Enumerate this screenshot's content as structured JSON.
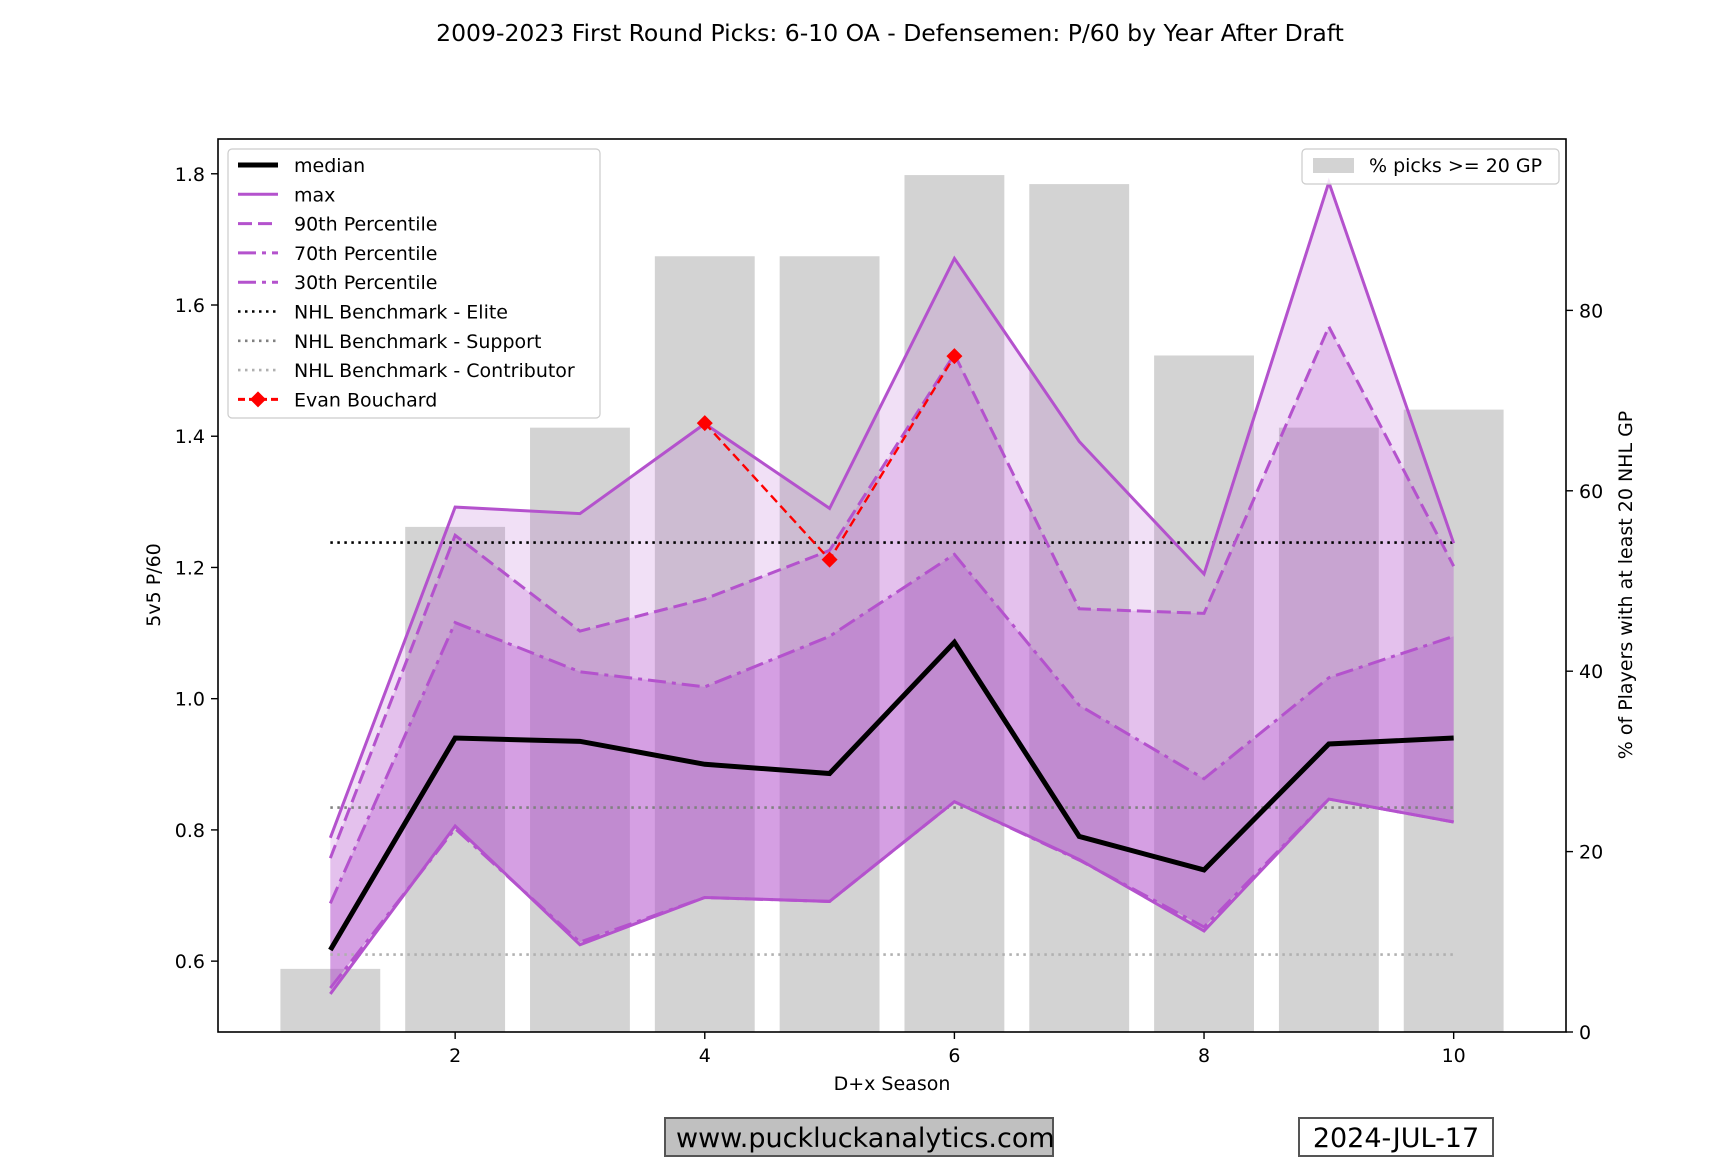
{
  "chart_data": {
    "type": "line",
    "title": "2009-2023 First Round Picks: 6-10 OA - Defensemen: P/60 by Year After Draft",
    "xlabel": "D+x Season",
    "ylabel": "5v5 P/60",
    "ylabel_right": "% of Players with at least 20 NHL GP",
    "x": [
      1,
      2,
      3,
      4,
      5,
      6,
      7,
      8,
      9,
      10
    ],
    "xlim": [
      0.1,
      10.9
    ],
    "ylim": [
      0.492,
      1.853
    ],
    "ylim_right": [
      0,
      99
    ],
    "x_ticks": [
      "2",
      "4",
      "6",
      "8",
      "10"
    ],
    "y_ticks": [
      "0.6",
      "0.8",
      "1.0",
      "1.2",
      "1.4",
      "1.6",
      "1.8"
    ],
    "y_right_ticks": [
      "0",
      "20",
      "40",
      "60",
      "80"
    ],
    "bars": {
      "name": "% picks >= 20 GP",
      "values": [
        7,
        56,
        67,
        86,
        86,
        95,
        94,
        75,
        67,
        69
      ],
      "color": "#d3d3d3"
    },
    "series": [
      {
        "name": "median",
        "style": "solid-thick",
        "color": "#000000",
        "values": [
          0.617,
          0.94,
          0.935,
          0.9,
          0.886,
          1.086,
          0.79,
          0.739,
          0.931,
          0.94
        ]
      },
      {
        "name": "max",
        "style": "solid",
        "color": "#b452cd",
        "values": [
          0.788,
          1.292,
          1.282,
          1.419,
          1.29,
          1.671,
          1.392,
          1.19,
          1.787,
          1.237
        ]
      },
      {
        "name": "90th Percentile",
        "style": "dashed",
        "color": "#b452cd",
        "values": [
          0.757,
          1.249,
          1.103,
          1.152,
          1.226,
          1.525,
          1.137,
          1.13,
          1.567,
          1.202
        ]
      },
      {
        "name": "70th Percentile",
        "style": "dashdot",
        "color": "#b452cd",
        "values": [
          0.688,
          1.116,
          1.041,
          1.018,
          1.095,
          1.22,
          0.99,
          0.878,
          1.032,
          1.095
        ]
      },
      {
        "name": "30th Percentile",
        "style": "dashdot",
        "color": "#b452cd",
        "values": [
          0.559,
          0.802,
          0.629,
          0.697,
          0.691,
          0.843,
          0.754,
          0.652,
          0.847,
          0.812
        ]
      },
      {
        "name": "min",
        "style": "solid",
        "color": "#b452cd",
        "in_legend": false,
        "values": [
          0.55,
          0.806,
          0.625,
          0.697,
          0.691,
          0.843,
          0.755,
          0.646,
          0.847,
          0.812
        ]
      }
    ],
    "benchmarks": [
      {
        "name": "NHL Benchmark - Elite",
        "value": 1.238,
        "color": "#000000"
      },
      {
        "name": "NHL Benchmark - Support",
        "value": 0.834,
        "color": "#808080"
      },
      {
        "name": "NHL Benchmark - Contributor",
        "value": 0.61,
        "color": "#b0b0b0"
      }
    ],
    "player": {
      "name": "Evan Bouchard",
      "color": "#ff0000",
      "x": [
        4,
        5,
        6
      ],
      "values": [
        1.42,
        1.212,
        1.522
      ]
    },
    "legend_left_position": "top-left",
    "legend_right_position": "top-right",
    "fill_color": "#b452cd"
  },
  "footer": {
    "website": "www.puckluckanalytics.com",
    "date": "2024-JUL-17"
  }
}
